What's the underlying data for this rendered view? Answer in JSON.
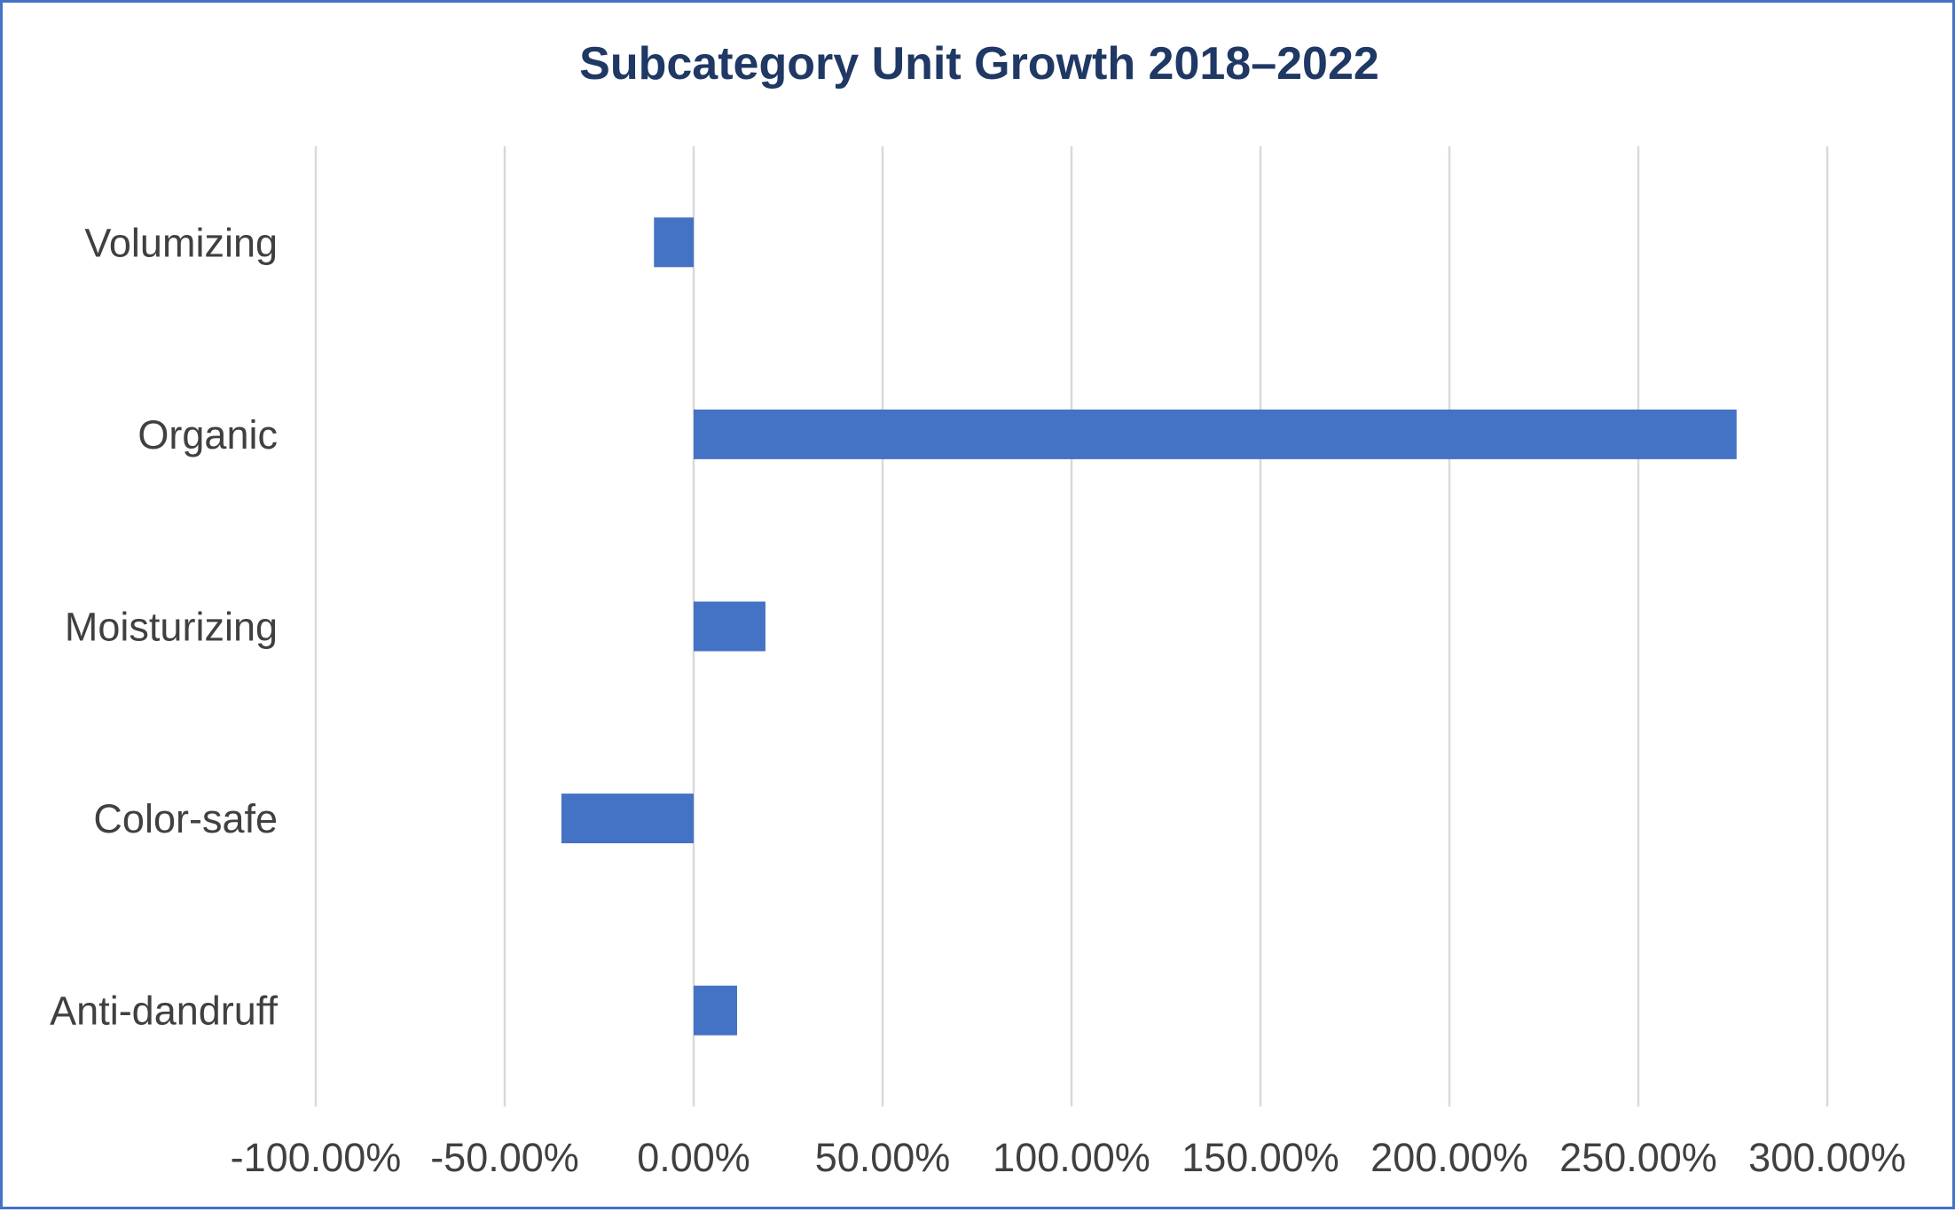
{
  "chart_data": {
    "type": "bar",
    "orientation": "horizontal",
    "title": "Subcategory Unit Growth 2018–2022",
    "xlabel": "",
    "ylabel": "",
    "categories": [
      "Volumizing",
      "Organic",
      "Moisturizing",
      "Color-safe",
      "Anti-dandruff"
    ],
    "values": [
      -0.105,
      2.76,
      0.19,
      -0.35,
      0.115
    ],
    "xlim": [
      -1.0,
      3.0
    ],
    "x_ticks": [
      -1.0,
      -0.5,
      0.0,
      0.5,
      1.0,
      1.5,
      2.0,
      2.5,
      3.0
    ],
    "x_tick_labels": [
      "-100.00%",
      "-50.00%",
      "0.00%",
      "50.00%",
      "100.00%",
      "150.00%",
      "200.00%",
      "250.00%",
      "300.00%"
    ],
    "grid": true,
    "legend": "none",
    "colors": {
      "bar": "#4472C4",
      "frame": "#4472C4",
      "title": "#1F3864",
      "text": "#404040",
      "grid": "#D9D9D9"
    }
  }
}
